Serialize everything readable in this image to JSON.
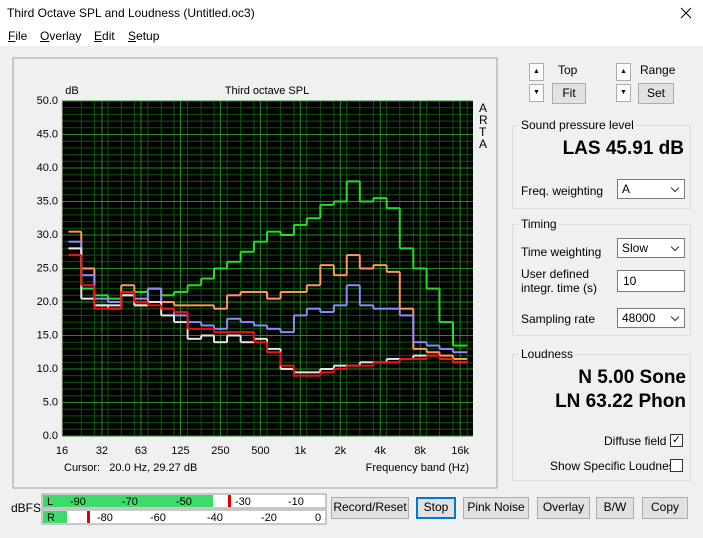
{
  "window": {
    "title": "Third Octave SPL and Loudness (Untitled.oc3)"
  },
  "menu": [
    "File",
    "Overlay",
    "Edit",
    "Setup"
  ],
  "chart_data": {
    "type": "step",
    "title": "Third octave SPL",
    "y_unit": "dB",
    "side_label": "ARTA",
    "xlabel": "Frequency band (Hz)",
    "cursor_label": "Cursor:   20.0 Hz, 29.27 dB",
    "xscale": "log",
    "xlim": [
      16,
      20000
    ],
    "xticks": [
      16,
      32,
      63,
      125,
      250,
      500,
      {
        "value": 1000,
        "label": "1k"
      },
      {
        "value": 2000,
        "label": "2k"
      },
      {
        "value": 4000,
        "label": "4k"
      },
      {
        "value": 8000,
        "label": "8k"
      },
      {
        "value": 16000,
        "label": "16k"
      }
    ],
    "ylim": [
      0,
      50
    ],
    "yticks": [
      {
        "value": 0,
        "label": "0.0"
      },
      {
        "value": 5,
        "label": "5.0"
      },
      {
        "value": 10,
        "label": "10.0"
      },
      {
        "value": 15,
        "label": "15.0"
      },
      {
        "value": 20,
        "label": "20.0"
      },
      {
        "value": 25,
        "label": "25.0"
      },
      {
        "value": 30,
        "label": "30.0"
      },
      {
        "value": 35,
        "label": "35.0"
      },
      {
        "value": 40,
        "label": "40.0"
      },
      {
        "value": 45,
        "label": "45.0"
      },
      {
        "value": 50,
        "label": "50.0"
      }
    ],
    "grid": true,
    "x": [
      20,
      25,
      31.5,
      40,
      50,
      63,
      80,
      100,
      125,
      160,
      200,
      250,
      315,
      400,
      500,
      630,
      800,
      1000,
      1250,
      1600,
      2000,
      2500,
      3150,
      4000,
      5000,
      6300,
      8000,
      10000,
      12500,
      16000
    ],
    "series": [
      {
        "color": "#22e022",
        "values": [
          28,
          22,
          21,
          20.5,
          21,
          21.5,
          22,
          21,
          21.5,
          22.5,
          23.5,
          25,
          26,
          27.5,
          29,
          30.5,
          30,
          31.5,
          32.5,
          34.5,
          35,
          38,
          35,
          35.5,
          34,
          28,
          25,
          22,
          17,
          13.5
        ]
      },
      {
        "color": "#ff9a5a",
        "values": [
          30.5,
          25,
          19.5,
          19,
          22.5,
          19.5,
          22,
          20,
          19.5,
          19.5,
          19.5,
          19,
          21,
          21.5,
          21.5,
          20.5,
          21.5,
          21.5,
          22.5,
          25.5,
          24,
          27,
          25,
          25.5,
          24.5,
          19,
          13,
          12.5,
          12,
          11.5
        ]
      },
      {
        "color": "#8c8cff",
        "values": [
          29,
          24,
          20.5,
          20,
          21.5,
          20.5,
          22,
          19,
          18,
          17,
          16.5,
          16,
          17.5,
          17,
          16.5,
          16,
          15.5,
          18,
          19,
          18.5,
          19.5,
          22.5,
          19.5,
          19,
          19,
          18,
          14,
          13.5,
          13,
          12.5
        ]
      },
      {
        "color": "#e4e4e4",
        "values": [
          28,
          20.5,
          19.5,
          19.5,
          21,
          19.5,
          20,
          18,
          17,
          14.5,
          15,
          14,
          15,
          14,
          14.5,
          13,
          10,
          9.5,
          9.5,
          10,
          10.5,
          10.5,
          11,
          11,
          11.5,
          11.5,
          12,
          12,
          11.5,
          11
        ]
      },
      {
        "color": "#ee1111",
        "values": [
          27,
          22.5,
          19,
          19,
          21.5,
          20,
          19.5,
          19,
          18.5,
          16,
          16,
          15.5,
          15.5,
          15.5,
          14,
          12.5,
          10.5,
          9,
          9,
          9.5,
          10,
          10.5,
          10.5,
          11,
          11,
          11.5,
          11.5,
          12,
          11.5,
          11
        ]
      }
    ]
  },
  "controls": {
    "top": "Top",
    "fit": "Fit",
    "range": "Range",
    "set": "Set",
    "spl": {
      "title": "Sound pressure level",
      "reading": "LAS 45.91 dB",
      "freq_weighting": "Freq. weighting",
      "freq_weighting_value": "A"
    },
    "timing": {
      "title": "Timing",
      "time_weighting": "Time weighting",
      "time_weighting_value": "Slow",
      "integr_time": "User defined integr. time (s)",
      "integr_time_value": "10",
      "sampling_rate": "Sampling rate",
      "sampling_rate_value": "48000"
    },
    "loudness": {
      "title": "Loudness",
      "n": "N 5.00 Sone",
      "ln": "LN 63.22 Phon",
      "diffuse": "Diffuse field",
      "specific": "Show Specific Loudness"
    }
  },
  "meters": {
    "label": "dBFS",
    "left": "L",
    "right": "R",
    "left_scale": [
      "-90",
      "-70",
      "-50",
      "-30",
      "-10"
    ],
    "right_scale": [
      "-80",
      "-60",
      "-40",
      "-20",
      "0"
    ]
  },
  "buttons": [
    "Record/Reset",
    "Stop",
    "Pink Noise",
    "Overlay",
    "B/W",
    "Copy"
  ]
}
